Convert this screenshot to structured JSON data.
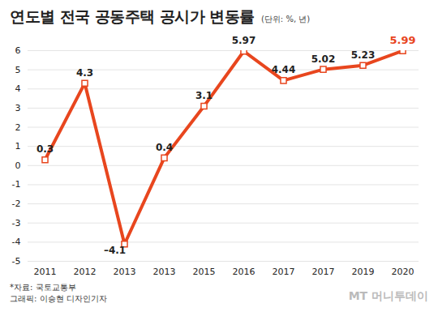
{
  "chart_data": {
    "type": "line",
    "title": "연도별 전국 공동주택 공시가 변동률",
    "subtitle": "(단위: %, 년)",
    "categories": [
      "2011",
      "2012",
      "2013",
      "2013",
      "2015",
      "2016",
      "2017",
      "2017",
      "2019",
      "2020"
    ],
    "values": [
      0.3,
      4.3,
      -4.1,
      0.4,
      3.1,
      5.97,
      4.44,
      5.02,
      5.23,
      5.99
    ],
    "value_labels": [
      "0.3",
      "4.3",
      "–4.1",
      "0.4",
      "3.1",
      "5.97",
      "4.44",
      "5.02",
      "5.23",
      "5.99"
    ],
    "color": "#e8461e",
    "marker": "square",
    "ylim": [
      -5,
      6
    ],
    "yticks": [
      -5,
      -4,
      -3,
      -2,
      -1,
      0,
      1,
      2,
      3,
      4,
      5,
      6
    ],
    "grid": true,
    "data_labels": true,
    "source": "*자료: 국토교통부",
    "credit": "그래픽: 이승현 디자인기자",
    "logo": "MT 머니투데이"
  }
}
